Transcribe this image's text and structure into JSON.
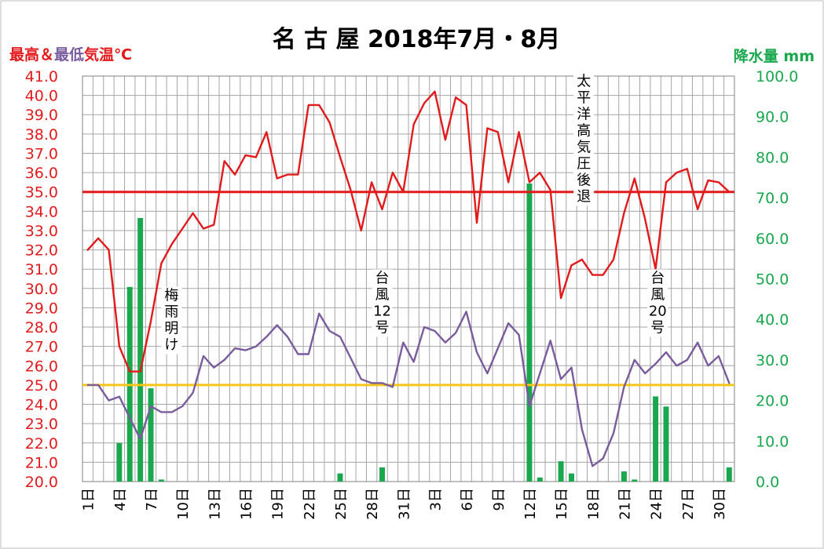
{
  "chart_data": {
    "type": "line",
    "title": "名 古 屋 2018年7月・8月",
    "y_left_label": "最高＆最低気温℃",
    "y_left_label_parts": [
      "最高",
      "＆",
      "最低",
      "気温℃"
    ],
    "y_right_label": "降水量 mm",
    "y_left_range": [
      20.0,
      41.0
    ],
    "y_right_range": [
      0.0,
      100.0
    ],
    "y_left_ticks": [
      "41.0",
      "40.0",
      "39.0",
      "38.0",
      "37.0",
      "36.0",
      "35.0",
      "34.0",
      "33.0",
      "32.0",
      "31.0",
      "30.0",
      "29.0",
      "28.0",
      "27.0",
      "26.0",
      "25.0",
      "24.0",
      "23.0",
      "22.0",
      "21.0",
      "20.0"
    ],
    "y_right_ticks": [
      "100.0",
      "90.0",
      "80.0",
      "70.0",
      "60.0",
      "50.0",
      "40.0",
      "30.0",
      "20.0",
      "10.0",
      "0.0"
    ],
    "x_tick_labels": [
      "1日",
      "4日",
      "7日",
      "10日",
      "13日",
      "16日",
      "19日",
      "22日",
      "25日",
      "28日",
      "31日",
      "3日",
      "6日",
      "9日",
      "12日",
      "15日",
      "18日",
      "21日",
      "24日",
      "27日",
      "30日"
    ],
    "x_tick_days": [
      1,
      4,
      7,
      10,
      13,
      16,
      19,
      22,
      25,
      28,
      31,
      34,
      37,
      40,
      43,
      46,
      49,
      52,
      55,
      58,
      61
    ],
    "days": [
      1,
      2,
      3,
      4,
      5,
      6,
      7,
      8,
      9,
      10,
      11,
      12,
      13,
      14,
      15,
      16,
      17,
      18,
      19,
      20,
      21,
      22,
      23,
      24,
      25,
      26,
      27,
      28,
      29,
      30,
      31,
      32,
      33,
      34,
      35,
      36,
      37,
      38,
      39,
      40,
      41,
      42,
      43,
      44,
      45,
      46,
      47,
      48,
      49,
      50,
      51,
      52,
      53,
      54,
      55,
      56,
      57,
      58,
      59,
      60,
      61,
      62
    ],
    "series": [
      {
        "key": "max",
        "color": "#e31a1c",
        "values": [
          32.0,
          32.6,
          32.0,
          27.0,
          25.7,
          25.7,
          28.3,
          31.3,
          32.3,
          33.1,
          33.9,
          33.1,
          33.3,
          36.6,
          35.9,
          36.9,
          36.8,
          38.1,
          35.7,
          35.9,
          35.9,
          39.5,
          39.5,
          38.6,
          36.8,
          35.1,
          33.0,
          35.5,
          34.1,
          36.0,
          35.0,
          38.5,
          39.6,
          40.2,
          37.7,
          39.9,
          39.5,
          33.4,
          38.3,
          38.1,
          35.5,
          38.1,
          35.5,
          36.0,
          35.1,
          29.5,
          31.2,
          31.5,
          30.7,
          30.7,
          31.5,
          33.9,
          35.7,
          33.6,
          31.0,
          35.5,
          36.0,
          36.2,
          34.1,
          35.6,
          35.5,
          35.0
        ]
      },
      {
        "key": "min",
        "color": "#7a5c9e",
        "values": [
          25.0,
          25.0,
          24.2,
          24.4,
          23.3,
          22.2,
          23.9,
          23.6,
          23.6,
          23.9,
          24.6,
          26.5,
          25.9,
          26.3,
          26.9,
          26.8,
          27.0,
          27.5,
          28.1,
          27.5,
          26.6,
          26.6,
          28.7,
          27.8,
          27.5,
          26.4,
          25.3,
          25.1,
          25.1,
          24.9,
          27.2,
          26.2,
          28.0,
          27.8,
          27.2,
          27.7,
          28.8,
          26.7,
          25.6,
          26.9,
          28.2,
          27.6,
          23.9,
          25.6,
          27.3,
          25.3,
          25.9,
          22.7,
          20.8,
          21.2,
          22.5,
          24.9,
          26.3,
          25.6,
          26.1,
          26.7,
          26.0,
          26.3,
          27.2,
          26.0,
          26.5,
          25.1
        ]
      }
    ],
    "precip": {
      "color": "#1aa84f",
      "values": [
        0,
        0,
        0,
        9.5,
        48,
        65,
        23,
        0.5,
        0,
        0,
        0,
        0,
        0,
        0,
        0,
        0,
        0,
        0,
        0,
        0,
        0,
        0,
        0,
        0,
        2,
        0,
        0,
        0,
        3.5,
        0,
        0,
        0,
        0,
        0,
        0,
        0,
        0,
        0,
        0,
        0,
        0,
        0,
        73.5,
        1,
        0,
        5,
        2,
        0,
        0,
        0,
        0,
        2.5,
        0.5,
        0,
        21,
        18.5,
        0,
        0,
        0,
        0,
        0,
        3.5
      ]
    },
    "reference_lines": [
      {
        "key": "hot",
        "value": 35.0,
        "color": "#e31a1c"
      },
      {
        "key": "tropical",
        "value": 25.0,
        "color": "#f5c518"
      }
    ],
    "annotations": [
      {
        "key": "tsuyu",
        "lines": [
          "梅",
          "雨",
          "明",
          "け"
        ],
        "day": 8.3,
        "value": 29.4,
        "align": "start"
      },
      {
        "key": "typhoon12",
        "lines": [
          "台",
          "風",
          "12",
          "号"
        ],
        "day": 29.0,
        "value": 30.3,
        "align": "middle"
      },
      {
        "key": "pacific-high",
        "lines": [
          "太",
          "平",
          "洋",
          "高",
          "気",
          "圧",
          "後",
          "退"
        ],
        "day": 47.5,
        "value": 40.5,
        "align": "start"
      },
      {
        "key": "typhoon20",
        "lines": [
          "台",
          "風",
          "20",
          "号"
        ],
        "day": 55.2,
        "value": 30.3,
        "align": "middle"
      }
    ],
    "grid": true,
    "legend": "none"
  }
}
